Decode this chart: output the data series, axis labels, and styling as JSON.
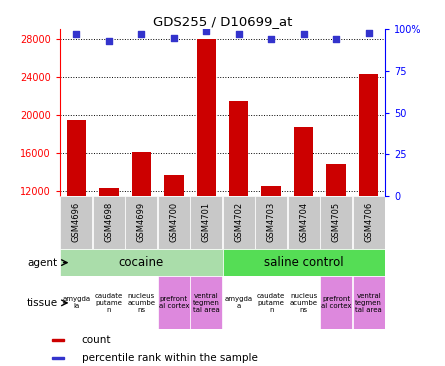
{
  "title": "GDS255 / D10699_at",
  "samples": [
    "GSM4696",
    "GSM4698",
    "GSM4699",
    "GSM4700",
    "GSM4701",
    "GSM4702",
    "GSM4703",
    "GSM4704",
    "GSM4705",
    "GSM4706"
  ],
  "counts": [
    19500,
    12300,
    16100,
    13700,
    28000,
    21500,
    12500,
    18700,
    14800,
    24300
  ],
  "percentiles": [
    97,
    93,
    97,
    95,
    99,
    97,
    94,
    97,
    94,
    98
  ],
  "ylim_left": [
    11500,
    29000
  ],
  "yticks_left": [
    12000,
    16000,
    20000,
    24000,
    28000
  ],
  "yticks_right": [
    0,
    25,
    50,
    75,
    100
  ],
  "bar_color": "#cc0000",
  "dot_color": "#3333cc",
  "agent_groups": [
    {
      "label": "cocaine",
      "start": 0,
      "end": 5,
      "color": "#aaddaa"
    },
    {
      "label": "saline control",
      "start": 5,
      "end": 10,
      "color": "#55dd55"
    }
  ],
  "tissue_labels": [
    "amygda\nla",
    "caudate\nputame\nn",
    "nucleus\nacumbe\nns",
    "prefront\nal cortex",
    "ventral\ntegmen\ntal area",
    "amygda\na",
    "caudate\nputame\nn",
    "nucleus\nacumbe\nns",
    "prefront\nal cortex",
    "ventral\ntegmen\ntal area"
  ],
  "tissue_colors": [
    "#ffffff",
    "#ffffff",
    "#ffffff",
    "#dd88dd",
    "#dd88dd",
    "#ffffff",
    "#ffffff",
    "#ffffff",
    "#dd88dd",
    "#dd88dd"
  ],
  "legend_items": [
    {
      "color": "#cc0000",
      "label": "count"
    },
    {
      "color": "#3333cc",
      "label": "percentile rank within the sample"
    }
  ],
  "bar_baseline": 11500,
  "sample_box_color": "#c8c8c8",
  "tissue_label_fontsize": 5.0,
  "sample_fontsize": 6.0,
  "agent_fontsize": 8.5,
  "label_fontsize": 7.5
}
